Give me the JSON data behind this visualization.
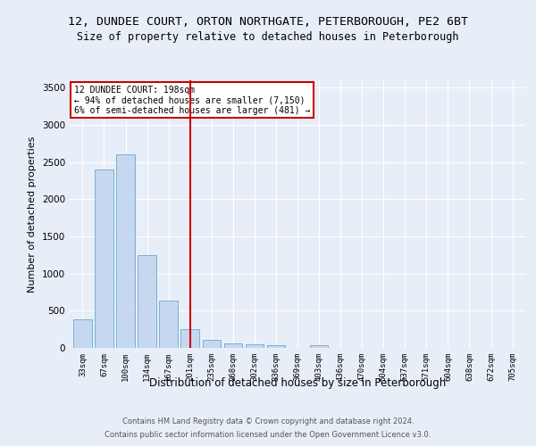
{
  "title_line1": "12, DUNDEE COURT, ORTON NORTHGATE, PETERBOROUGH, PE2 6BT",
  "title_line2": "Size of property relative to detached houses in Peterborough",
  "xlabel": "Distribution of detached houses by size in Peterborough",
  "ylabel": "Number of detached properties",
  "categories": [
    "33sqm",
    "67sqm",
    "100sqm",
    "134sqm",
    "167sqm",
    "201sqm",
    "235sqm",
    "268sqm",
    "302sqm",
    "336sqm",
    "369sqm",
    "403sqm",
    "436sqm",
    "470sqm",
    "504sqm",
    "537sqm",
    "571sqm",
    "604sqm",
    "638sqm",
    "672sqm",
    "705sqm"
  ],
  "values": [
    390,
    2400,
    2600,
    1250,
    640,
    250,
    110,
    60,
    45,
    35,
    0,
    35,
    0,
    0,
    0,
    0,
    0,
    0,
    0,
    0,
    0
  ],
  "bar_color": "#c5d8f0",
  "bar_edge_color": "#7aafd4",
  "bg_color": "#e8eef7",
  "grid_color": "#ffffff",
  "vline_x": 5,
  "vline_color": "#cc0000",
  "annotation_text": "12 DUNDEE COURT: 198sqm\n← 94% of detached houses are smaller (7,150)\n6% of semi-detached houses are larger (481) →",
  "annotation_box_color": "#ffffff",
  "annotation_box_edge": "#cc0000",
  "ylim": [
    0,
    3600
  ],
  "yticks": [
    0,
    500,
    1000,
    1500,
    2000,
    2500,
    3000,
    3500
  ],
  "footer1": "Contains HM Land Registry data © Crown copyright and database right 2024.",
  "footer2": "Contains public sector information licensed under the Open Government Licence v3.0.",
  "title_fontsize": 9.5,
  "subtitle_fontsize": 8.5,
  "xlabel_fontsize": 8.5,
  "ylabel_fontsize": 8.0,
  "bar_width": 0.85
}
